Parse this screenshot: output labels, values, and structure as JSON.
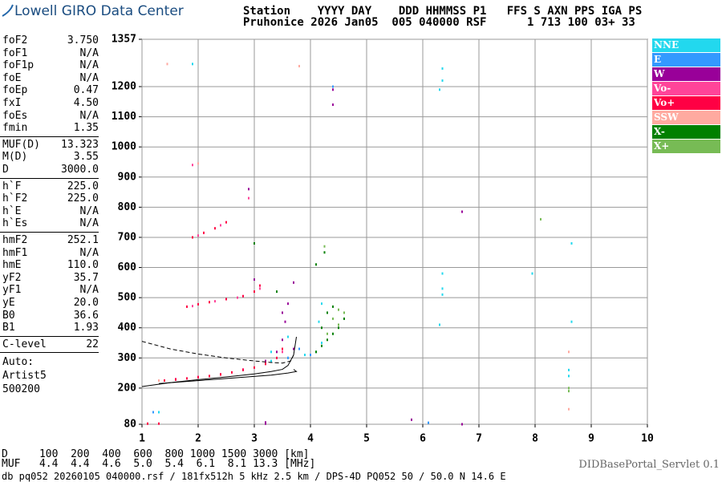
{
  "logo": "Lowell GIRO Data Center",
  "header": {
    "lines": [
      "Station    YYYY DAY    DDD HHMMSS P1   FFS S AXN PPS IGA PS",
      "Pruhonice 2026 Jan05  005 040000 RSF      1 713 100 03+ 33"
    ]
  },
  "panel": {
    "groups": [
      [
        [
          "foF2",
          "3.750"
        ],
        [
          "foF1",
          "N/A"
        ],
        [
          "foF1p",
          "N/A"
        ],
        [
          "foE",
          "N/A"
        ],
        [
          "foEp",
          "0.47"
        ],
        [
          "fxI",
          "4.50"
        ],
        [
          "foEs",
          "N/A"
        ],
        [
          "fmin",
          "1.35"
        ]
      ],
      [
        [
          "MUF(D)",
          "13.323"
        ],
        [
          "M(D)",
          "3.55"
        ],
        [
          "D",
          "3000.0"
        ]
      ],
      [
        [
          "h`F",
          "225.0"
        ],
        [
          "h`F2",
          "225.0"
        ],
        [
          "h`E",
          "N/A"
        ],
        [
          "h`Es",
          "N/A"
        ]
      ],
      [
        [
          "hmF2",
          "252.1"
        ],
        [
          "hmF1",
          "N/A"
        ],
        [
          "hmE",
          "110.0"
        ],
        [
          "yF2",
          "35.7"
        ],
        [
          "yF1",
          "N/A"
        ],
        [
          "yE",
          "20.0"
        ],
        [
          "B0",
          "36.6"
        ],
        [
          "B1",
          "1.93"
        ]
      ],
      [
        [
          "C-level",
          "22"
        ]
      ]
    ],
    "notes": [
      "Auto:",
      "Artist5",
      "500200"
    ]
  },
  "muf_table": [
    "D     100  200  400  600  800 1000 1500 3000 [km]",
    "MUF   4.4  4.4  4.6  5.0  5.4  6.1  8.1 13.3 [MHz]"
  ],
  "footer": "db pq052 20260105 040000.rsf / 181fx512h 5 kHz 2.5 km / DPS-4D PQ052 50 / 50.0 N 14.6 E",
  "servlet": "DIDBasePortal_Servlet 0.1",
  "chart_data": {
    "type": "scatter",
    "xlim": [
      1,
      10
    ],
    "xticks": [
      1,
      2,
      3,
      4,
      5,
      6,
      7,
      8,
      9,
      10
    ],
    "ylim": [
      80,
      1357
    ],
    "yticks": [
      80,
      200,
      300,
      400,
      500,
      600,
      700,
      800,
      900,
      1000,
      1100,
      1200,
      1357
    ],
    "grid": true,
    "series": [
      {
        "name": "NNE",
        "color": "#22d8ee",
        "x": [
          3.3,
          3.6,
          3.9,
          4.1,
          4.2,
          4.15,
          4.2,
          3.3,
          3.6,
          6.35,
          6.35,
          6.3,
          6.35,
          6.35,
          6.3,
          8.6,
          8.6,
          8.65,
          8.65,
          6.35,
          7.95,
          1.9,
          1.3
        ],
        "y": [
          290,
          300,
          310,
          320,
          350,
          420,
          480,
          320,
          370,
          1260,
          1220,
          1190,
          530,
          510,
          410,
          260,
          240,
          420,
          680,
          580,
          580,
          1275,
          120
        ]
      },
      {
        "name": "E",
        "color": "#3399ff",
        "x": [
          3.6,
          3.8,
          4.0,
          1.2,
          6.1,
          4.4
        ],
        "y": [
          300,
          330,
          310,
          120,
          85,
          1200
        ]
      },
      {
        "name": "W",
        "color": "#990099",
        "x": [
          3.2,
          3.4,
          3.5,
          3.55,
          3.6,
          3.5,
          3.7,
          3.7,
          3.0,
          2.9,
          4.4,
          4.4,
          6.7,
          6.7,
          3.2,
          3.2,
          5.8
        ],
        "y": [
          290,
          320,
          360,
          420,
          480,
          450,
          330,
          550,
          560,
          860,
          1190,
          1140,
          785,
          80,
          82,
          86,
          95
        ]
      },
      {
        "name": "Vo-",
        "color": "#ff4499",
        "x": [
          1.6,
          2.0,
          2.4,
          2.8,
          3.2,
          3.5,
          1.9,
          2.3,
          2.7,
          3.1,
          2.0,
          2.4,
          2.9,
          1.9
        ],
        "y": [
          230,
          237,
          246,
          262,
          285,
          320,
          472,
          488,
          500,
          530,
          706,
          740,
          830,
          940
        ]
      },
      {
        "name": "Vo+",
        "color": "#ff0044",
        "x": [
          1.4,
          1.6,
          1.8,
          2.0,
          2.2,
          2.4,
          2.6,
          2.8,
          3.0,
          3.2,
          3.4,
          3.5,
          1.8,
          2.0,
          2.2,
          2.5,
          2.8,
          3.0,
          3.1,
          1.9,
          2.1,
          2.3,
          2.5,
          1.1,
          1.3
        ],
        "y": [
          225,
          228,
          232,
          236,
          240,
          245,
          252,
          260,
          268,
          280,
          300,
          330,
          470,
          478,
          485,
          495,
          505,
          520,
          540,
          700,
          715,
          730,
          750,
          82,
          82
        ]
      },
      {
        "name": "SSW",
        "color": "#ffaaa0",
        "x": [
          1.45,
          2.0,
          3.8,
          8.6,
          8.6,
          1.3
        ],
        "y": [
          1275,
          945,
          1268,
          320,
          130,
          225
        ]
      },
      {
        "name": "X-",
        "color": "#008000",
        "x": [
          4.1,
          4.2,
          4.3,
          4.4,
          4.5,
          4.6,
          4.2,
          4.3,
          4.4,
          4.1,
          4.25,
          3.0,
          3.4
        ],
        "y": [
          320,
          340,
          360,
          380,
          400,
          430,
          400,
          450,
          470,
          610,
          650,
          680,
          520
        ]
      },
      {
        "name": "X+",
        "color": "#77bb55",
        "x": [
          4.3,
          4.5,
          4.6,
          4.4,
          4.25,
          8.1,
          8.6,
          8.6,
          4.5
        ],
        "y": [
          380,
          410,
          450,
          430,
          670,
          760,
          190,
          200,
          460
        ]
      }
    ],
    "curves": [
      {
        "x": [
          1.0,
          1.5,
          2.0,
          2.5,
          3.0,
          3.3,
          3.5,
          3.65,
          3.7
        ],
        "y": [
          355,
          330,
          313,
          300,
          290,
          285,
          283,
          290,
          310
        ],
        "dash": true
      },
      {
        "x": [
          1.0,
          1.5,
          2.0,
          2.5,
          3.0,
          3.3,
          3.5,
          3.6,
          3.7,
          3.75
        ],
        "y": [
          205,
          218,
          228,
          237,
          247,
          255,
          262,
          275,
          310,
          370
        ],
        "dash": false
      },
      {
        "x": [
          1.3,
          1.8,
          2.3,
          2.8,
          3.3,
          3.6,
          3.75,
          3.7
        ],
        "y": [
          215,
          222,
          229,
          236,
          243,
          250,
          255,
          262
        ],
        "dash": false
      }
    ]
  }
}
